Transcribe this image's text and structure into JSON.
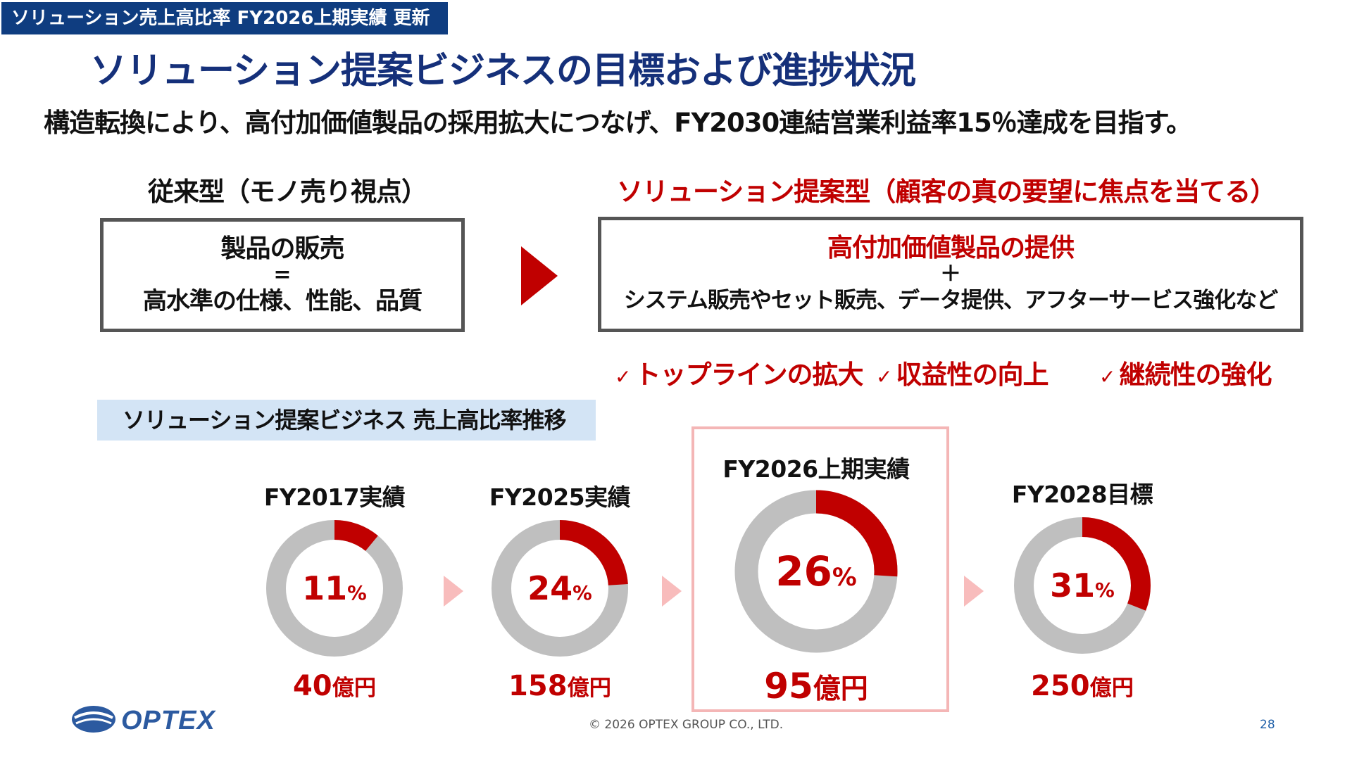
{
  "header_tag": "ソリューション売上高比率 FY2026上期実績 更新",
  "title": "ソリューション提案ビジネスの目標および進捗状況",
  "subtitle": "構造転換により、高付加価値製品の採用拡大につなげ、FY2030連結営業利益率15％達成を目指す。",
  "left": {
    "heading": "従来型（モノ売り視点）",
    "line1": "製品の販売",
    "equals": "=",
    "line2": "高水準の仕様、性能、品質"
  },
  "right": {
    "heading": "ソリューション提案型（顧客の真の要望に焦点を当てる）",
    "line1": "高付加価値製品の提供",
    "plus": "＋",
    "line2": "システム販売やセット販売、データ提供、アフターサービス強化など"
  },
  "checks": [
    {
      "mark": "✓",
      "label": "トップラインの拡大"
    },
    {
      "mark": "✓",
      "label": "収益性の向上"
    },
    {
      "mark": "✓",
      "label": "継続性の強化"
    }
  ],
  "section_label": "ソリューション提案ビジネス 売上高比率推移",
  "percent_unit": "%",
  "amount_unit": "億円",
  "chart_data": {
    "type": "pie",
    "categories": [
      "FY2017実績",
      "FY2025実績",
      "FY2026上期実績",
      "FY2028目標"
    ],
    "values": [
      11,
      24,
      26,
      31
    ],
    "amounts": [
      "40",
      "158",
      "95",
      "250"
    ],
    "colors": {
      "solution": "#c00000",
      "other": "#bfbfbf",
      "arrow": "#f8bcbc"
    }
  },
  "footer": {
    "copyright": "© 2026 OPTEX GROUP CO., LTD.",
    "page": "28"
  },
  "logo_text": "OPTEX"
}
